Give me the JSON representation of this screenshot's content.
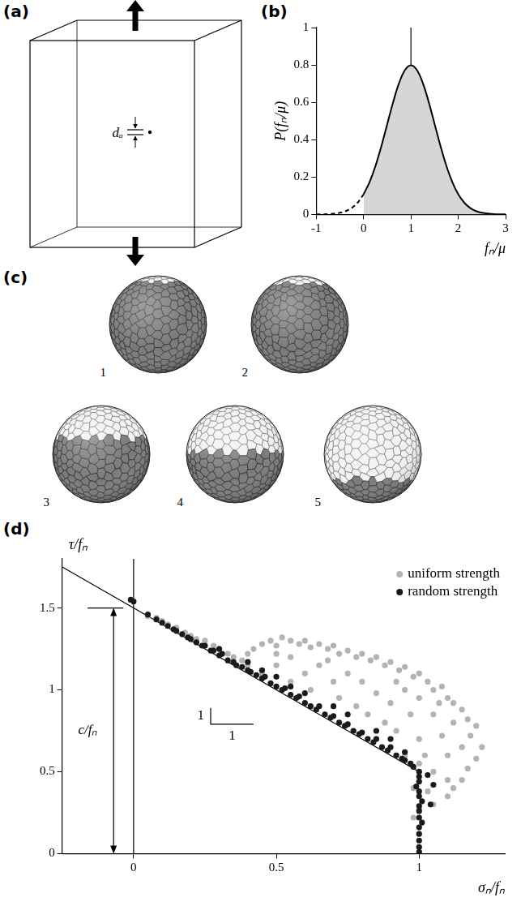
{
  "chart_data": [
    {
      "panel": "(b)",
      "type": "line",
      "x_label": "fₙ/μ",
      "y_label": "P(fₙ/μ)",
      "x": [
        -1,
        -0.75,
        -0.5,
        -0.375,
        -0.25,
        -0.125,
        0,
        0.125,
        0.25,
        0.375,
        0.5,
        0.625,
        0.75,
        0.875,
        1,
        1.125,
        1.25,
        1.375,
        1.5,
        1.625,
        1.75,
        1.875,
        2,
        2.125,
        2.25,
        2.375,
        2.5,
        2.75,
        3
      ],
      "series": [
        {
          "color": "#000000",
          "line_style": "dashed",
          "values": [
            0.0003,
            0.0017,
            0.0089,
            0.0182,
            0.035,
            0.0635,
            0.108,
            null,
            null,
            null,
            null,
            null,
            null,
            null,
            null,
            null,
            null,
            null,
            null,
            null,
            null,
            null,
            null,
            null,
            null,
            null,
            null,
            null,
            null
          ]
        },
        {
          "type": "area",
          "color": "#000000",
          "line_style": "solid",
          "values": [
            null,
            null,
            null,
            null,
            null,
            null,
            0.108,
            0.173,
            0.259,
            0.365,
            0.484,
            0.602,
            0.704,
            0.773,
            0.798,
            0.773,
            0.704,
            0.602,
            0.484,
            0.365,
            0.259,
            0.173,
            0.108,
            0.0635,
            0.035,
            0.0182,
            0.0089,
            0.0017,
            0.0003
          ]
        }
      ],
      "reference_lines": [
        {
          "x": 1
        }
      ],
      "xlim": [
        -1,
        3
      ],
      "xticks": [
        -1,
        0,
        1,
        2,
        3
      ],
      "ylim": [
        0,
        1
      ],
      "yticks": [
        0,
        0.2,
        0.4,
        0.6,
        0.8,
        1
      ],
      "grid": false
    },
    {
      "panel": "(d)",
      "type": "scatter",
      "x_label": "σₙ/fₙ",
      "y_label": "τ/fₙ",
      "series": [
        {
          "name": "uniform strength",
          "color": "#b3b3b3",
          "marker": "circle",
          "x": [
            0.05,
            0.08,
            0.1,
            0.12,
            0.15,
            0.18,
            0.2,
            0.22,
            0.25,
            0.28,
            0.3,
            0.33,
            0.35,
            0.38,
            0.4,
            0.42,
            0.45,
            0.48,
            0.5,
            0.52,
            0.55,
            0.58,
            0.6,
            0.62,
            0.65,
            0.68,
            0.7,
            0.72,
            0.75,
            0.78,
            0.8,
            0.83,
            0.85,
            0.88,
            0.9,
            0.93,
            0.95,
            0.98,
            1.0,
            1.03,
            1.05,
            1.08,
            1.1,
            1.12,
            1.15,
            1.17,
            1.2,
            1.18,
            1.22,
            1.2,
            1.17,
            1.15,
            1.12,
            1.1,
            1.05,
            1.0,
            0.98,
            0.45,
            0.5,
            0.55,
            0.6,
            0.62,
            0.65,
            0.7,
            0.72,
            0.75,
            0.78,
            0.8,
            0.82,
            0.85,
            0.88,
            0.9,
            0.92,
            0.95,
            0.97,
            1.0,
            1.0,
            1.02,
            1.05,
            1.05,
            1.08,
            1.1,
            1.12,
            1.15,
            1.1,
            0.95,
            1.0,
            0.98,
            1.03,
            0.55,
            0.68,
            0.92,
            1.07,
            0.4,
            0.5
          ],
          "values": [
            1.45,
            1.44,
            1.42,
            1.4,
            1.38,
            1.35,
            1.33,
            1.31,
            1.3,
            1.27,
            1.25,
            1.22,
            1.2,
            1.18,
            1.22,
            1.25,
            1.28,
            1.3,
            1.27,
            1.32,
            1.3,
            1.28,
            1.3,
            1.26,
            1.28,
            1.25,
            1.27,
            1.22,
            1.24,
            1.2,
            1.22,
            1.18,
            1.2,
            1.15,
            1.17,
            1.12,
            1.14,
            1.08,
            1.1,
            1.05,
            1.0,
            1.02,
            0.95,
            0.92,
            0.88,
            0.82,
            0.78,
            0.72,
            0.65,
            0.58,
            0.52,
            0.45,
            0.4,
            0.35,
            0.3,
            0.27,
            0.22,
            1.1,
            1.15,
            1.05,
            1.1,
            1.0,
            1.15,
            1.05,
            0.95,
            1.1,
            0.9,
            1.05,
            0.85,
            0.98,
            0.8,
            0.92,
            0.75,
            1.0,
            0.85,
            0.95,
            0.7,
            0.6,
            0.85,
            0.5,
            0.72,
            0.6,
            0.8,
            0.65,
            0.45,
            0.6,
            0.55,
            0.4,
            0.38,
            1.2,
            1.18,
            1.05,
            0.92,
            1.15,
            1.22
          ]
        },
        {
          "name": "random strength",
          "color": "#1a1a1a",
          "marker": "circle",
          "x": [
            -0.01,
            0.0,
            0.05,
            0.08,
            0.1,
            0.12,
            0.14,
            0.15,
            0.17,
            0.19,
            0.2,
            0.22,
            0.24,
            0.25,
            0.27,
            0.28,
            0.3,
            0.31,
            0.33,
            0.35,
            0.36,
            0.38,
            0.4,
            0.41,
            0.43,
            0.45,
            0.46,
            0.48,
            0.5,
            0.52,
            0.53,
            0.55,
            0.57,
            0.58,
            0.6,
            0.62,
            0.64,
            0.65,
            0.67,
            0.69,
            0.7,
            0.72,
            0.74,
            0.75,
            0.77,
            0.79,
            0.8,
            0.82,
            0.84,
            0.85,
            0.87,
            0.89,
            0.9,
            0.92,
            0.94,
            0.95,
            0.97,
            0.98,
            1.0,
            1.0,
            1.0,
            0.99,
            1.0,
            1.0,
            1.01,
            1.0,
            1.0,
            1.0,
            1.01,
            1.0,
            1.0,
            1.0,
            1.0,
            1.0,
            0.3,
            0.45,
            0.55,
            0.6,
            0.7,
            0.75,
            0.85,
            0.9,
            0.95,
            1.03,
            1.05,
            1.04,
            0.5,
            0.4
          ],
          "values": [
            1.55,
            1.54,
            1.46,
            1.43,
            1.41,
            1.39,
            1.37,
            1.36,
            1.34,
            1.32,
            1.31,
            1.29,
            1.27,
            1.27,
            1.24,
            1.24,
            1.21,
            1.22,
            1.18,
            1.17,
            1.15,
            1.14,
            1.12,
            1.11,
            1.09,
            1.07,
            1.08,
            1.04,
            1.02,
            1.0,
            1.01,
            0.97,
            0.95,
            0.96,
            0.92,
            0.9,
            0.88,
            0.9,
            0.85,
            0.83,
            0.84,
            0.8,
            0.78,
            0.79,
            0.75,
            0.73,
            0.74,
            0.7,
            0.68,
            0.7,
            0.65,
            0.63,
            0.65,
            0.6,
            0.58,
            0.57,
            0.55,
            0.53,
            0.5,
            0.47,
            0.44,
            0.41,
            0.38,
            0.35,
            0.32,
            0.29,
            0.26,
            0.22,
            0.19,
            0.16,
            0.12,
            0.08,
            0.04,
            0.01,
            1.25,
            1.12,
            1.02,
            0.98,
            0.9,
            0.85,
            0.75,
            0.7,
            0.62,
            0.48,
            0.42,
            0.3,
            1.08,
            1.17
          ]
        }
      ],
      "reference_lines": [
        {
          "x": 0
        },
        {
          "x": [
            -0.25,
            1
          ],
          "y": [
            1.75,
            0.5
          ]
        }
      ],
      "annotations": [
        {
          "text": "c/fₙ",
          "x": -0.16,
          "y": 0.75,
          "arrow": {
            "x": -0.07,
            "y": [
              0,
              1.5
            ]
          }
        },
        {
          "text": "1",
          "x": 0.235,
          "y": 0.84
        },
        {
          "text": "1",
          "x": 0.345,
          "y": 0.72
        }
      ],
      "slope_triangle": {
        "x": [
          0.27,
          0.42
        ],
        "y": [
          0.89,
          0.79
        ]
      },
      "legend": "upper right",
      "xlim": [
        -0.25,
        1.3
      ],
      "xticks": [
        0,
        0.5,
        1
      ],
      "ylim": [
        0,
        1.8
      ],
      "yticks": [
        0,
        0.5,
        1,
        1.5
      ],
      "grid": false
    }
  ],
  "diagrams": [
    {
      "panel": "(a)",
      "label": "dₐ"
    },
    {
      "panel": "(c)",
      "labels": [
        "1",
        "2",
        "3",
        "4",
        "5"
      ]
    }
  ]
}
